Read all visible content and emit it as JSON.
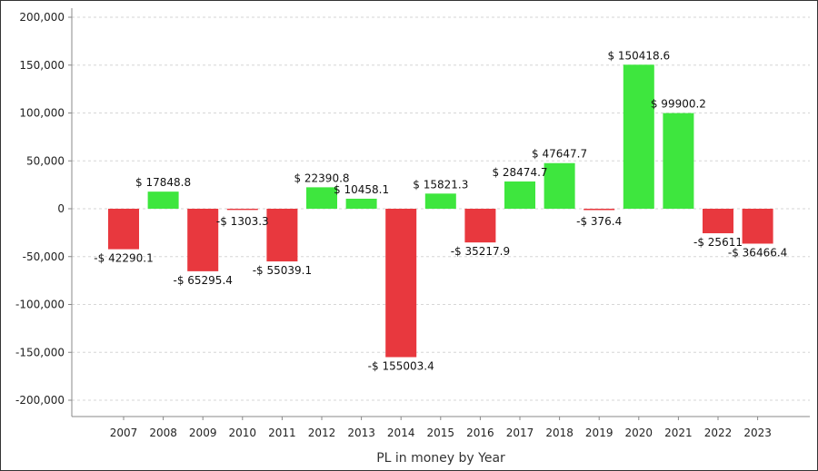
{
  "chart_data": {
    "type": "bar",
    "title": "",
    "xlabel": "PL in money by Year",
    "ylabel": "",
    "ylim": [
      -220000,
      210000
    ],
    "yticks": [
      200000,
      150000,
      100000,
      50000,
      0,
      -50000,
      -100000,
      -150000,
      -200000
    ],
    "ytick_labels": [
      "200,000",
      "150,000",
      "100,000",
      "50,000",
      "0",
      "-50,000",
      "-100,000",
      "-150,000",
      "-200,000"
    ],
    "grid": true,
    "categories": [
      "2007",
      "2008",
      "2009",
      "2010",
      "2011",
      "2012",
      "2013",
      "2014",
      "2015",
      "2016",
      "2017",
      "2018",
      "2019",
      "2020",
      "2021",
      "2022",
      "2023"
    ],
    "values": [
      -42290.1,
      17848.8,
      -65295.4,
      -1303.3,
      -55039.1,
      22390.8,
      10458.1,
      -155003.4,
      15821.3,
      -35217.9,
      28474.7,
      47647.7,
      -376.4,
      150418.6,
      99900.2,
      -25611,
      -36466.4
    ],
    "data_labels": [
      "-$ 42290.1",
      "$ 17848.8",
      "-$ 65295.4",
      "-$ 1303.3",
      "-$ 55039.1",
      "$ 22390.8",
      "$ 10458.1",
      "-$ 155003.4",
      "$ 15821.3",
      "-$ 35217.9",
      "$ 28474.7",
      "$ 47647.7",
      "-$ 376.4",
      "$ 150418.6",
      "$ 99900.2",
      "-$ 25611",
      "-$ 36466.4"
    ],
    "colors": {
      "positive": "#3ee63e",
      "negative": "#e8383e",
      "grid": "#d6d6d6",
      "axis": "#888888"
    }
  }
}
